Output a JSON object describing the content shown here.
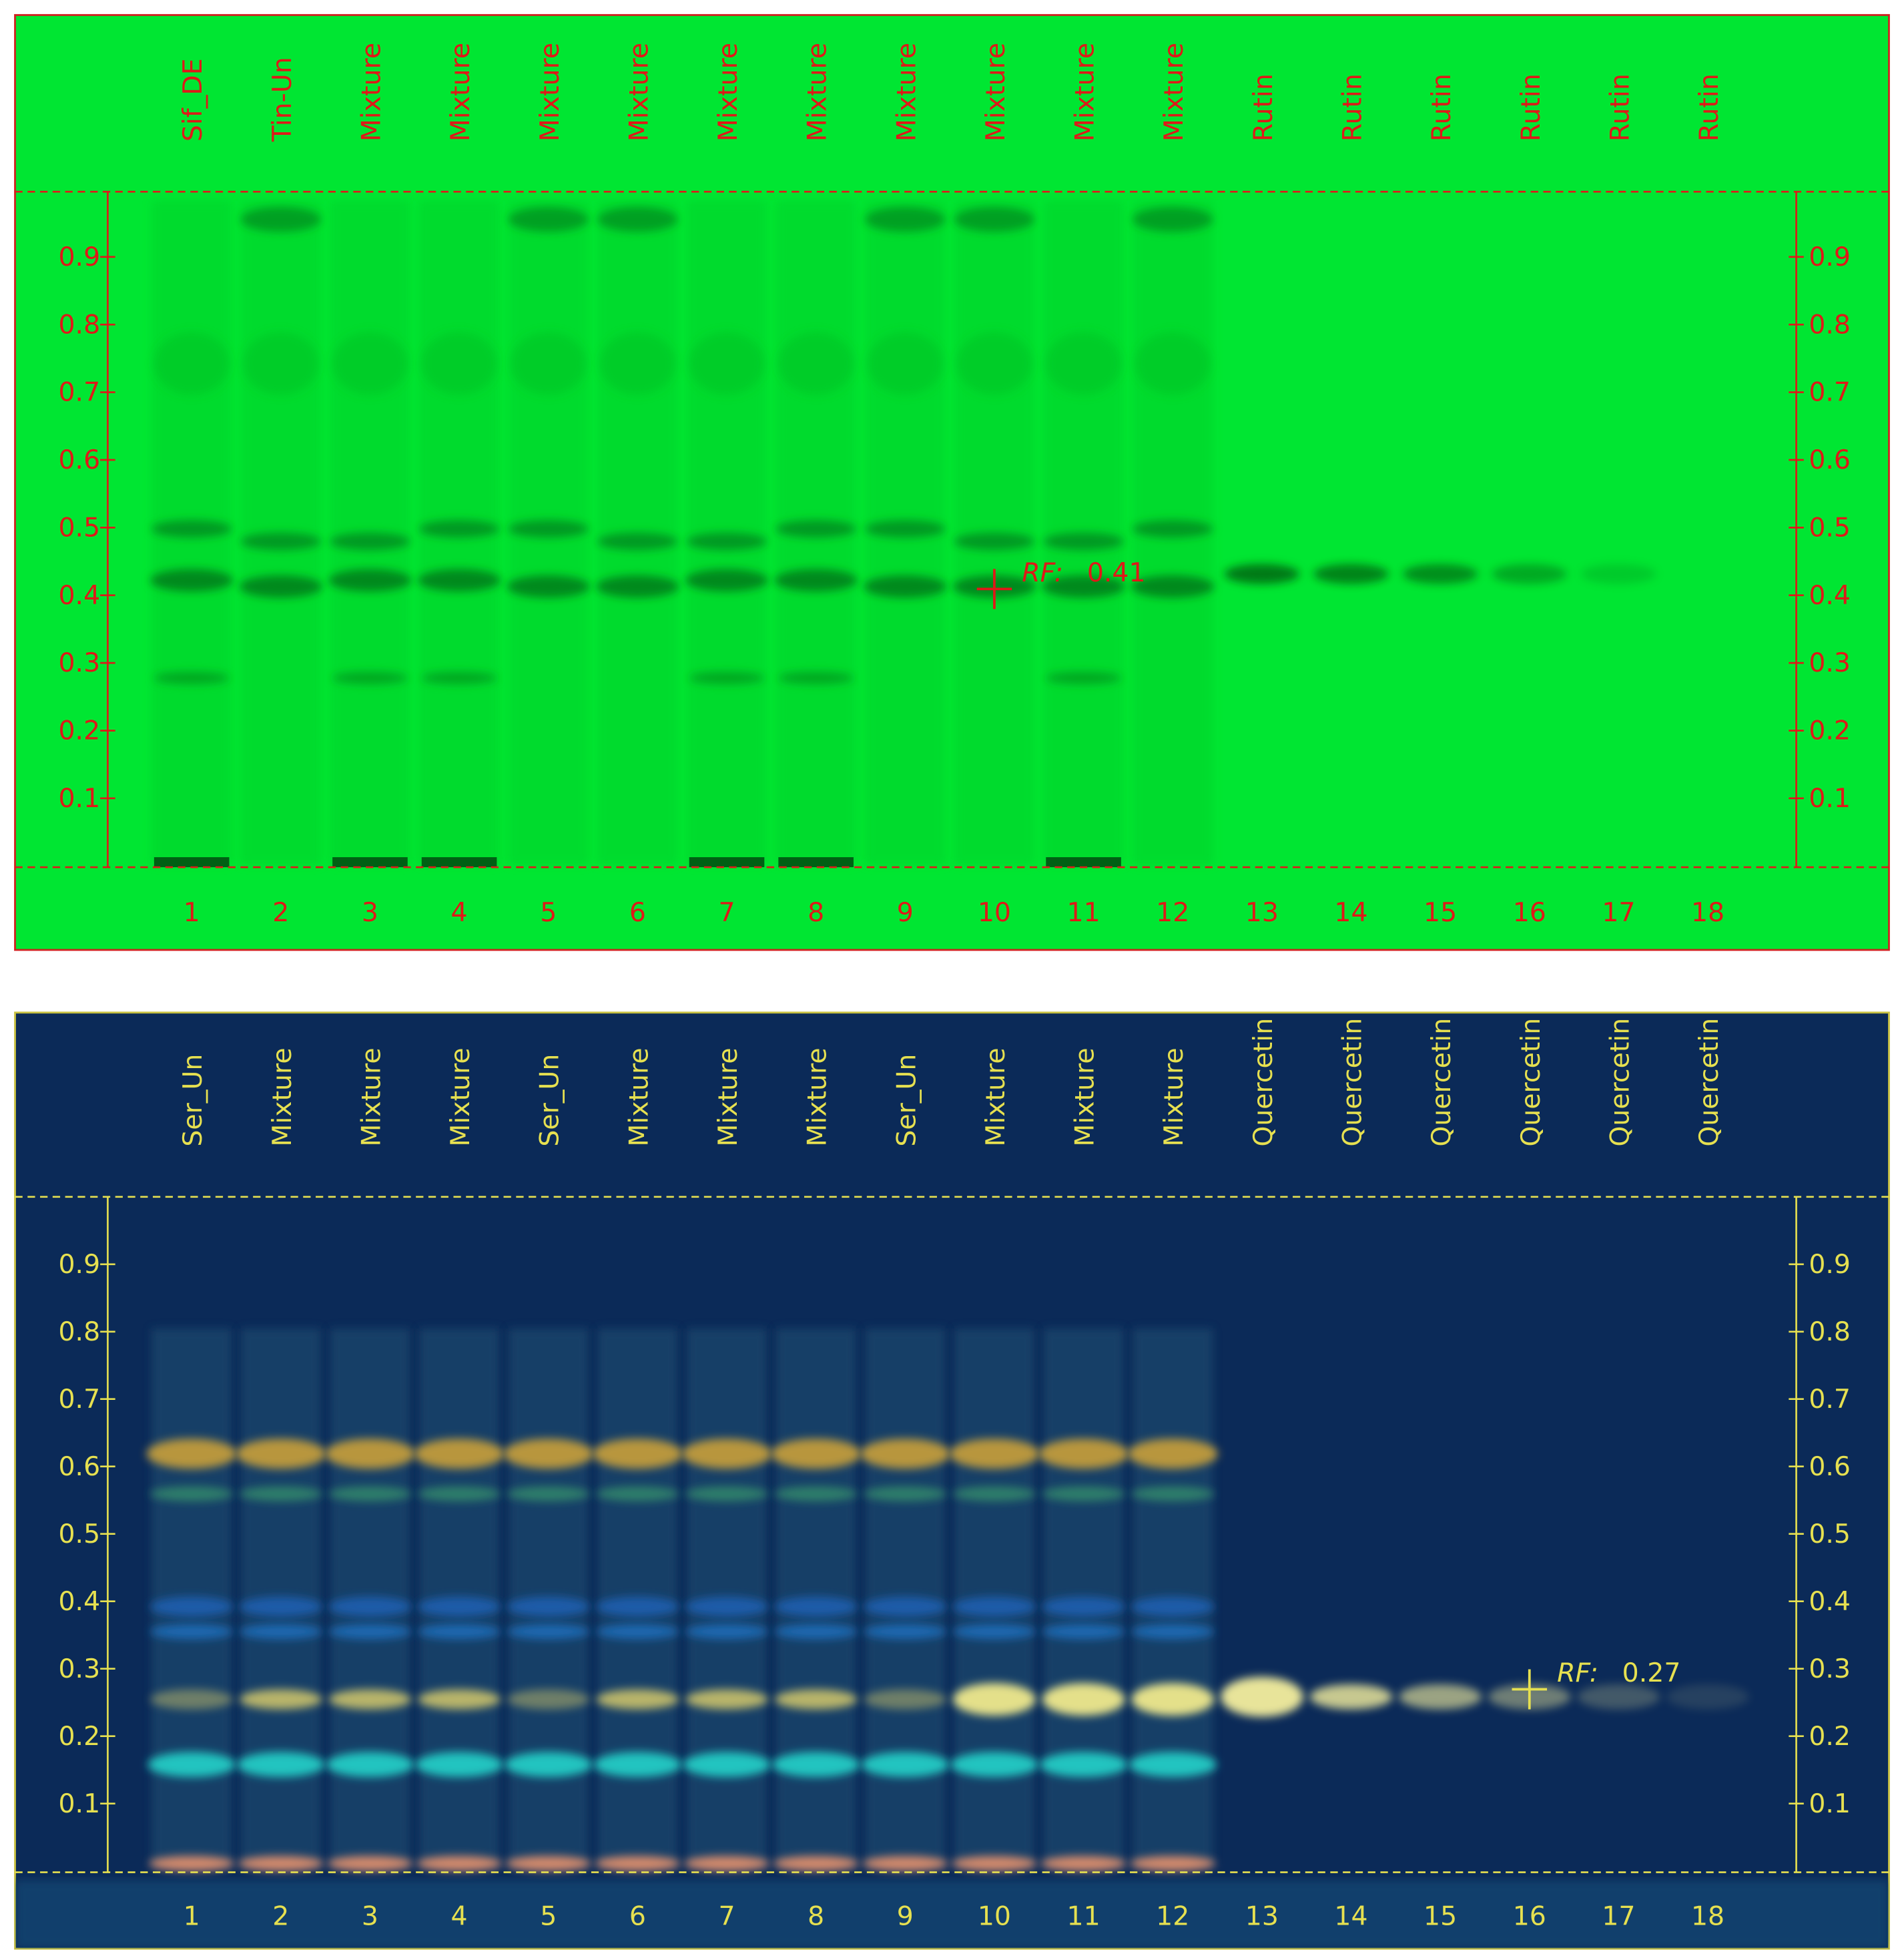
{
  "plates": [
    {
      "lane_labels": [
        "Sif_DE",
        "Tin-Un",
        "Mixture",
        "Mixture",
        "Mixture",
        "Mixture",
        "Mixture",
        "Mixture",
        "Mixture",
        "Mixture",
        "Mixture",
        "Mixture",
        "Rutin",
        "Rutin",
        "Rutin",
        "Rutin",
        "Rutin",
        "Rutin"
      ],
      "lane_numbers": [
        1,
        2,
        3,
        4,
        5,
        6,
        7,
        8,
        9,
        10,
        11,
        12,
        13,
        14,
        15,
        16,
        17,
        18
      ],
      "rf_ticks": [
        0.9,
        0.8,
        0.7,
        0.6,
        0.5,
        0.4,
        0.3,
        0.2,
        0.1
      ],
      "annotation": {
        "label": "RF:",
        "value": 0.41
      }
    },
    {
      "lane_labels": [
        "Ser_Un",
        "Mixture",
        "Mixture",
        "Mixture",
        "Ser_Un",
        "Mixture",
        "Mixture",
        "Mixture",
        "Ser_Un",
        "Mixture",
        "Mixture",
        "Mixture",
        "Quercetin",
        "Quercetin",
        "Quercetin",
        "Quercetin",
        "Quercetin",
        "Quercetin"
      ],
      "lane_numbers": [
        1,
        2,
        3,
        4,
        5,
        6,
        7,
        8,
        9,
        10,
        11,
        12,
        13,
        14,
        15,
        16,
        17,
        18
      ],
      "rf_ticks": [
        0.9,
        0.8,
        0.7,
        0.6,
        0.5,
        0.4,
        0.3,
        0.2,
        0.1
      ],
      "annotation": {
        "label": "RF:",
        "value": 0.27
      }
    }
  ]
}
